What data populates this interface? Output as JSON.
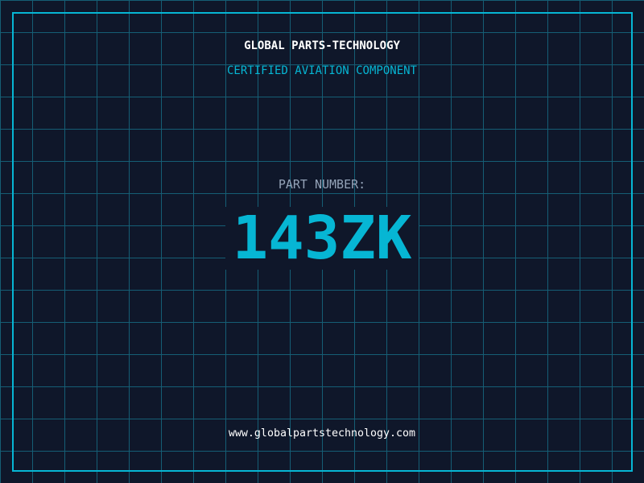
{
  "header": {
    "company": "GLOBAL PARTS-TECHNOLOGY",
    "tagline": "CERTIFIED AVIATION COMPONENT"
  },
  "part": {
    "label": "PART NUMBER:",
    "number": "143ZK"
  },
  "footer": {
    "website": "www.globalpartstechnology.com"
  },
  "colors": {
    "background": "#0f172a",
    "accent": "#06b6d4",
    "grid": "#155e75",
    "label": "#94a3b8"
  }
}
